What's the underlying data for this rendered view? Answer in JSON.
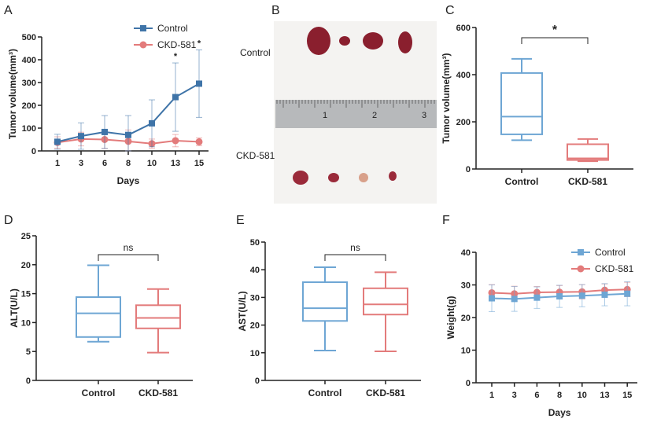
{
  "colors": {
    "control_line": "#3f74a8",
    "control_box": "#6ea6d4",
    "ckd": "#e37b7b",
    "axis": "#222222"
  },
  "chart_data": [
    {
      "panel": "A",
      "type": "line",
      "xlabel": "Days",
      "ylabel": "Tumor volume(mm³)",
      "categories": [
        "1",
        "3",
        "6",
        "8",
        "10",
        "13",
        "15"
      ],
      "ylim": [
        0,
        500
      ],
      "yticks": [
        0,
        100,
        200,
        300,
        400,
        500
      ],
      "legend_placement": "top-right",
      "series": [
        {
          "name": "Control",
          "marker": "square",
          "values": [
            40,
            65,
            83,
            70,
            121,
            236,
            295
          ],
          "error": [
            33,
            58,
            72,
            85,
            103,
            150,
            148
          ]
        },
        {
          "name": "CKD-581",
          "marker": "circle",
          "values": [
            37,
            52,
            50,
            42,
            32,
            45,
            40
          ],
          "error": [
            25,
            30,
            40,
            50,
            20,
            27,
            17
          ]
        }
      ],
      "annotations": [
        {
          "category": "13",
          "text": "*"
        },
        {
          "category": "15",
          "text": "*"
        }
      ]
    },
    {
      "panel": "C",
      "type": "box",
      "ylabel": "Tumor volume(mm³)",
      "categories": [
        "Control",
        "CKD-581"
      ],
      "ylim": [
        0,
        600
      ],
      "yticks": [
        0,
        200,
        400,
        600
      ],
      "boxes": [
        {
          "min": 122,
          "q1": 147,
          "median": 222,
          "q3": 407,
          "max": 467
        },
        {
          "min": 33,
          "q1": 38,
          "median": 45,
          "q3": 105,
          "max": 127
        }
      ],
      "significance": "*"
    },
    {
      "panel": "D",
      "type": "box",
      "ylabel": "ALT(U/L)",
      "categories": [
        "Control",
        "CKD-581"
      ],
      "ylim": [
        0,
        25
      ],
      "yticks": [
        0,
        5,
        10,
        15,
        20,
        25
      ],
      "boxes": [
        {
          "min": 6.7,
          "q1": 7.5,
          "median": 11.6,
          "q3": 14.4,
          "max": 19.9
        },
        {
          "min": 4.8,
          "q1": 9.0,
          "median": 10.8,
          "q3": 13.0,
          "max": 15.8
        }
      ],
      "significance": "ns"
    },
    {
      "panel": "E",
      "type": "box",
      "ylabel": "AST(U/L)",
      "categories": [
        "Control",
        "CKD-581"
      ],
      "ylim": [
        0,
        50
      ],
      "yticks": [
        0,
        10,
        20,
        30,
        40,
        50
      ],
      "boxes": [
        {
          "min": 10.8,
          "q1": 21.5,
          "median": 26.1,
          "q3": 35.5,
          "max": 40.9
        },
        {
          "min": 10.5,
          "q1": 23.8,
          "median": 27.5,
          "q3": 33.3,
          "max": 39.1
        }
      ],
      "significance": "ns"
    },
    {
      "panel": "F",
      "type": "line",
      "xlabel": "Days",
      "ylabel": "Weight(g)",
      "categories": [
        "1",
        "3",
        "6",
        "8",
        "10",
        "13",
        "15"
      ],
      "ylim": [
        0,
        40
      ],
      "yticks": [
        0,
        10,
        20,
        30,
        40
      ],
      "legend_placement": "top-right",
      "series": [
        {
          "name": "Control",
          "marker": "square",
          "values": [
            25.9,
            25.7,
            26.1,
            26.5,
            26.7,
            27.0,
            27.3
          ],
          "error": [
            4.1,
            3.8,
            3.3,
            3.4,
            3.4,
            3.4,
            3.7
          ]
        },
        {
          "name": "CKD-581",
          "marker": "circle",
          "values": [
            27.6,
            27.3,
            27.7,
            27.8,
            27.9,
            28.4,
            28.6
          ],
          "error": [
            2.5,
            2.3,
            1.8,
            2.0,
            2.2,
            1.9,
            2.2
          ]
        }
      ]
    }
  ],
  "photo": {
    "panel": "B",
    "row_labels": [
      "Control",
      "CKD-581"
    ],
    "ruler_numbers": [
      "1",
      "2",
      "3"
    ]
  }
}
